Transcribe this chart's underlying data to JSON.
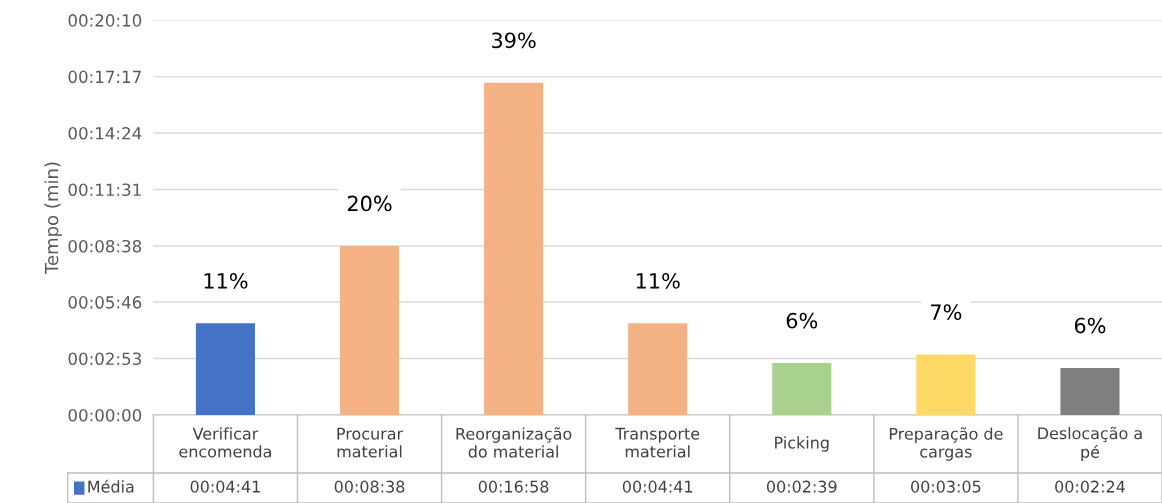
{
  "chart_data": {
    "type": "bar",
    "ylabel": "Tempo (min)",
    "categories": [
      "Verificar encomenda",
      "Procurar material",
      "Reorganização do material",
      "Transporte material",
      "Picking",
      "Preparação de cargas",
      "Deslocação a pé"
    ],
    "series": [
      {
        "name": "Média",
        "color": "#4472c4",
        "colors": [
          "#4472c4",
          "#f4b183",
          "#f4b183",
          "#f4b183",
          "#a9d18e",
          "#ffd966",
          "#7f7f7f"
        ],
        "values": [
          281,
          518,
          1018,
          281,
          159,
          185,
          144
        ],
        "value_labels": [
          "00:04:41",
          "00:08:38",
          "00:16:58",
          "00:04:41",
          "00:02:39",
          "00:03:05",
          "00:02:24"
        ]
      }
    ],
    "ylim": [
      0,
      1210
    ],
    "yticks": [
      {
        "value": 0,
        "label": "00:00:00"
      },
      {
        "value": 173,
        "label": "00:02:53"
      },
      {
        "value": 346,
        "label": "00:05:46"
      },
      {
        "value": 518,
        "label": "00:08:38"
      },
      {
        "value": 691,
        "label": "00:11:31"
      },
      {
        "value": 864,
        "label": "00:14:24"
      },
      {
        "value": 1037,
        "label": "00:17:17"
      },
      {
        "value": 1210,
        "label": "00:20:10"
      }
    ],
    "annotations": [
      {
        "text": "11%",
        "x": "Verificar encomenda",
        "y": 281
      },
      {
        "text": "20%",
        "x": "Procurar material",
        "y": 518
      },
      {
        "text": "39%",
        "x": "Reorganização do material",
        "y": 1018
      },
      {
        "text": "11%",
        "x": "Transporte material",
        "y": 281
      },
      {
        "text": "6%",
        "x": "Picking",
        "y": 159
      },
      {
        "text": "7%",
        "x": "Preparação de cargas",
        "y": 185
      },
      {
        "text": "6%",
        "x": "Deslocação a pé",
        "y": 144
      }
    ],
    "grid": "y",
    "legend": "bottom"
  }
}
